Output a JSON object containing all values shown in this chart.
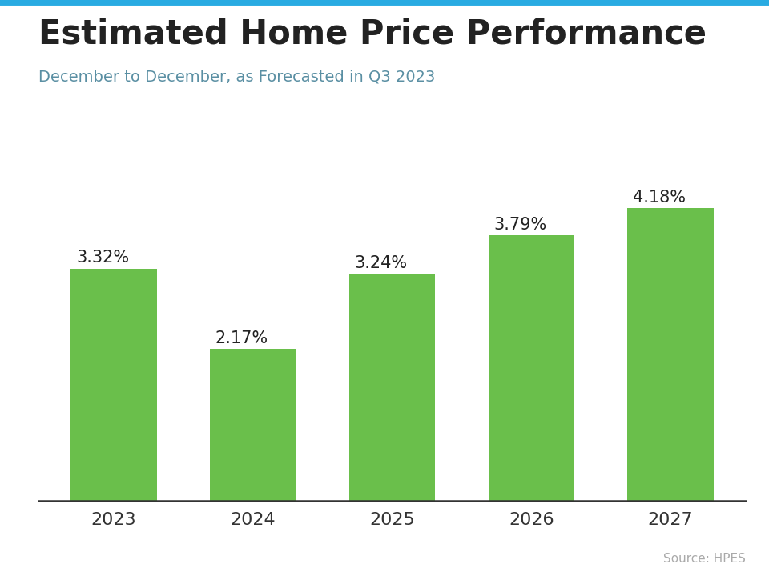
{
  "title": "Estimated Home Price Performance",
  "subtitle": "December to December, as Forecasted in Q3 2023",
  "source": "Source: HPES",
  "categories": [
    "2023",
    "2024",
    "2025",
    "2026",
    "2027"
  ],
  "values": [
    3.32,
    2.17,
    3.24,
    3.79,
    4.18
  ],
  "labels": [
    "3.32%",
    "2.17%",
    "3.24%",
    "3.79%",
    "4.18%"
  ],
  "bar_color": "#6abf4b",
  "title_color": "#222222",
  "subtitle_color": "#5a8fa3",
  "source_color": "#aaaaaa",
  "tick_color": "#333333",
  "background_color": "#ffffff",
  "top_accent_color": "#29abe2",
  "title_fontsize": 30,
  "subtitle_fontsize": 14,
  "label_fontsize": 15,
  "tick_fontsize": 16,
  "source_fontsize": 11,
  "ylim": [
    0,
    4.85
  ],
  "bar_width": 0.62
}
